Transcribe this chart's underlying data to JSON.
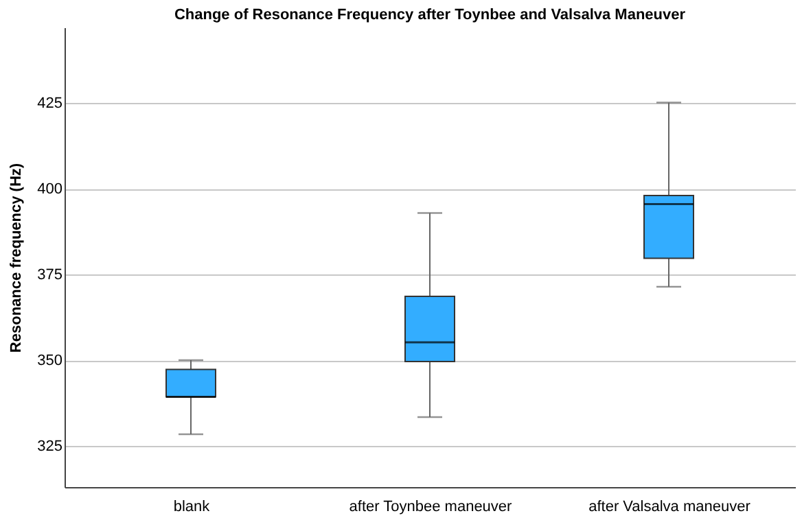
{
  "chart_data": {
    "type": "box",
    "title": "Change of Resonance Frequency after Toynbee and Valsalva Maneuver",
    "ylabel": "Resonance frequency (Hz)",
    "categories": [
      "blank",
      "after Toynbee maneuver",
      "after Valsalva maneuver"
    ],
    "boxes": [
      {
        "low": 328.4,
        "q1": 339.3,
        "median": 339.3,
        "q3": 347.3,
        "high": 350
      },
      {
        "low": 333.4,
        "q1": 349.6,
        "median": 355.2,
        "q3": 368.6,
        "high": 392.9
      },
      {
        "low": 371.4,
        "q1": 379.7,
        "median": 395.5,
        "q3": 398.0,
        "high": 425.1
      }
    ],
    "color": "#33adff",
    "ylim": [
      313,
      447
    ],
    "yticks": [
      325,
      350,
      375,
      400,
      425
    ],
    "grid": "y"
  }
}
